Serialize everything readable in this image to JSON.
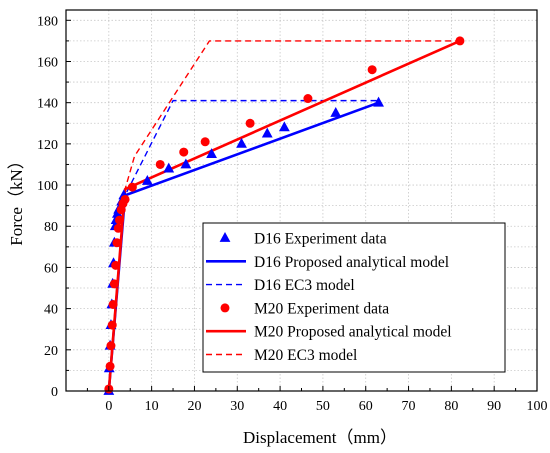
{
  "chart_data": {
    "type": "scatter",
    "xlabel": "Displacement（mm）",
    "ylabel": "Force（kN）",
    "xlim": [
      -10,
      100
    ],
    "ylim": [
      0,
      185
    ],
    "xticks": [
      0,
      10,
      20,
      30,
      40,
      50,
      60,
      70,
      80,
      90,
      100
    ],
    "yticks": [
      0,
      10,
      20,
      30,
      40,
      50,
      60,
      70,
      80,
      90,
      100,
      110,
      120,
      130,
      140,
      150,
      160,
      170,
      180
    ],
    "xtick_labels": [
      "0",
      "10",
      "20",
      "30",
      "40",
      "50",
      "60",
      "70",
      "80",
      "90",
      "100"
    ],
    "ytick_labels": [
      "0",
      "20",
      "40",
      "60",
      "80",
      "100",
      "120",
      "140",
      "160",
      "180"
    ],
    "legend_position": "lower-right",
    "grid": true,
    "series": [
      {
        "name": "D16 Experiment data",
        "kind": "markers",
        "marker": "triangle",
        "color": "#0000ff",
        "x": [
          0.0,
          0.1,
          0.3,
          0.5,
          0.7,
          0.9,
          1.1,
          1.3,
          1.5,
          1.7,
          2.0,
          2.3,
          2.6,
          3.0,
          3.5,
          9.0,
          14.0,
          18.0,
          24.0,
          31.0,
          37.0,
          41.0,
          53.0,
          63.0
        ],
        "y": [
          0,
          11,
          22,
          32,
          42,
          52,
          62,
          72,
          80,
          83,
          86,
          88,
          89,
          92,
          95,
          102,
          108,
          110,
          115,
          120,
          125,
          128,
          135,
          140
        ]
      },
      {
        "name": "D16 Proposed analytical model",
        "kind": "line",
        "dash": "solid",
        "color": "#0000ff",
        "x": [
          0,
          3.8,
          63
        ],
        "y": [
          0,
          95,
          140
        ]
      },
      {
        "name": "D16 EC3 model",
        "kind": "line",
        "dash": "dashed",
        "color": "#0000ff",
        "x": [
          0,
          3.8,
          15,
          63
        ],
        "y": [
          0,
          95,
          141,
          141
        ]
      },
      {
        "name": "M20 Experiment data",
        "kind": "markers",
        "marker": "circle",
        "color": "#ff0000",
        "x": [
          0.0,
          0.3,
          0.5,
          0.8,
          1.0,
          1.3,
          1.6,
          1.9,
          2.2,
          2.5,
          2.9,
          3.3,
          3.8,
          5.5,
          12.0,
          17.5,
          22.5,
          33.0,
          46.5,
          61.5,
          82.0
        ],
        "y": [
          1,
          12,
          22,
          32,
          42,
          52,
          61,
          72,
          79,
          83,
          88,
          91,
          93,
          99,
          110,
          116,
          121,
          130,
          142,
          156,
          170
        ]
      },
      {
        "name": "M20 Proposed analytical model",
        "kind": "line",
        "dash": "solid",
        "color": "#ff0000",
        "x": [
          0,
          3.8,
          82
        ],
        "y": [
          0,
          98,
          170
        ]
      },
      {
        "name": "M20 EC3 model",
        "kind": "line",
        "dash": "dashed",
        "color": "#ff0000",
        "x": [
          0,
          3.8,
          6,
          23.5,
          82
        ],
        "y": [
          0,
          98,
          114,
          170,
          170
        ]
      }
    ]
  }
}
